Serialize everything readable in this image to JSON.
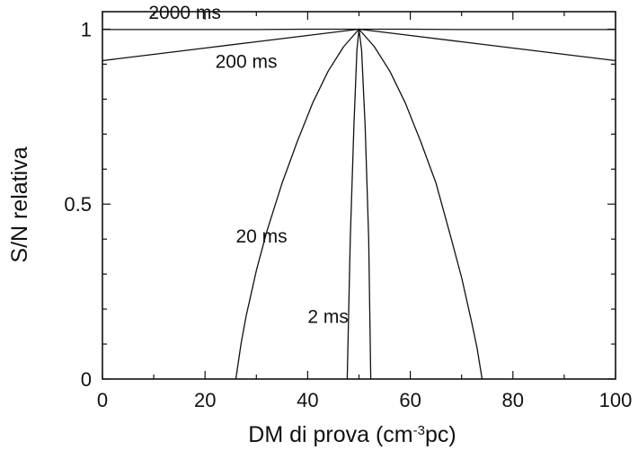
{
  "chart_data": {
    "type": "line",
    "title": "",
    "xlabel_main": "DM di prova (cm",
    "xlabel_sup": "-3",
    "xlabel_tail": "pc)",
    "ylabel": "S/N relativa",
    "xlim": [
      0,
      100
    ],
    "ylim": [
      0,
      1.05
    ],
    "x_ticks": [
      0,
      20,
      40,
      60,
      80,
      100
    ],
    "x_tick_labels": [
      "0",
      "20",
      "40",
      "60",
      "80",
      "100"
    ],
    "y_ticks": [
      0,
      0.5,
      1
    ],
    "y_tick_labels": [
      "0",
      "0.5",
      "1"
    ],
    "grid": false,
    "legend": "none",
    "series": [
      {
        "name": "2000 ms",
        "x": [
          0,
          10,
          20,
          30,
          40,
          50,
          60,
          70,
          80,
          90,
          100
        ],
        "y": [
          0.999,
          0.999,
          0.999,
          0.999,
          1.0,
          1.0,
          1.0,
          0.999,
          0.999,
          0.999,
          0.999
        ]
      },
      {
        "name": "200 ms",
        "x": [
          0,
          10,
          20,
          30,
          40,
          50,
          60,
          70,
          80,
          90,
          100
        ],
        "y": [
          0.91,
          0.928,
          0.946,
          0.964,
          0.982,
          1.0,
          0.982,
          0.964,
          0.946,
          0.928,
          0.91
        ]
      },
      {
        "name": "20 ms",
        "x": [
          26,
          27,
          28,
          30,
          32,
          35,
          38,
          41,
          44,
          47,
          50,
          53,
          56,
          59,
          62,
          65,
          68,
          70,
          72,
          73,
          74
        ],
        "y": [
          0,
          0.1,
          0.18,
          0.31,
          0.42,
          0.56,
          0.68,
          0.79,
          0.88,
          0.95,
          1.0,
          0.95,
          0.88,
          0.79,
          0.68,
          0.56,
          0.4,
          0.29,
          0.16,
          0.09,
          0
        ]
      },
      {
        "name": "2 ms",
        "x": [
          47.7,
          48.3,
          49.0,
          49.6,
          50.0,
          50.5,
          51.2,
          51.9,
          52.3
        ],
        "y": [
          0,
          0.4,
          0.72,
          0.94,
          1.0,
          0.94,
          0.72,
          0.4,
          0
        ]
      }
    ],
    "annotations": [
      {
        "text": "2000 ms",
        "x": 9,
        "y": 1.03
      },
      {
        "text": "200 ms",
        "x": 22,
        "y": 0.89
      },
      {
        "text": "20 ms",
        "x": 26,
        "y": 0.39
      },
      {
        "text": "2 ms",
        "x": 40,
        "y": 0.16
      }
    ]
  }
}
